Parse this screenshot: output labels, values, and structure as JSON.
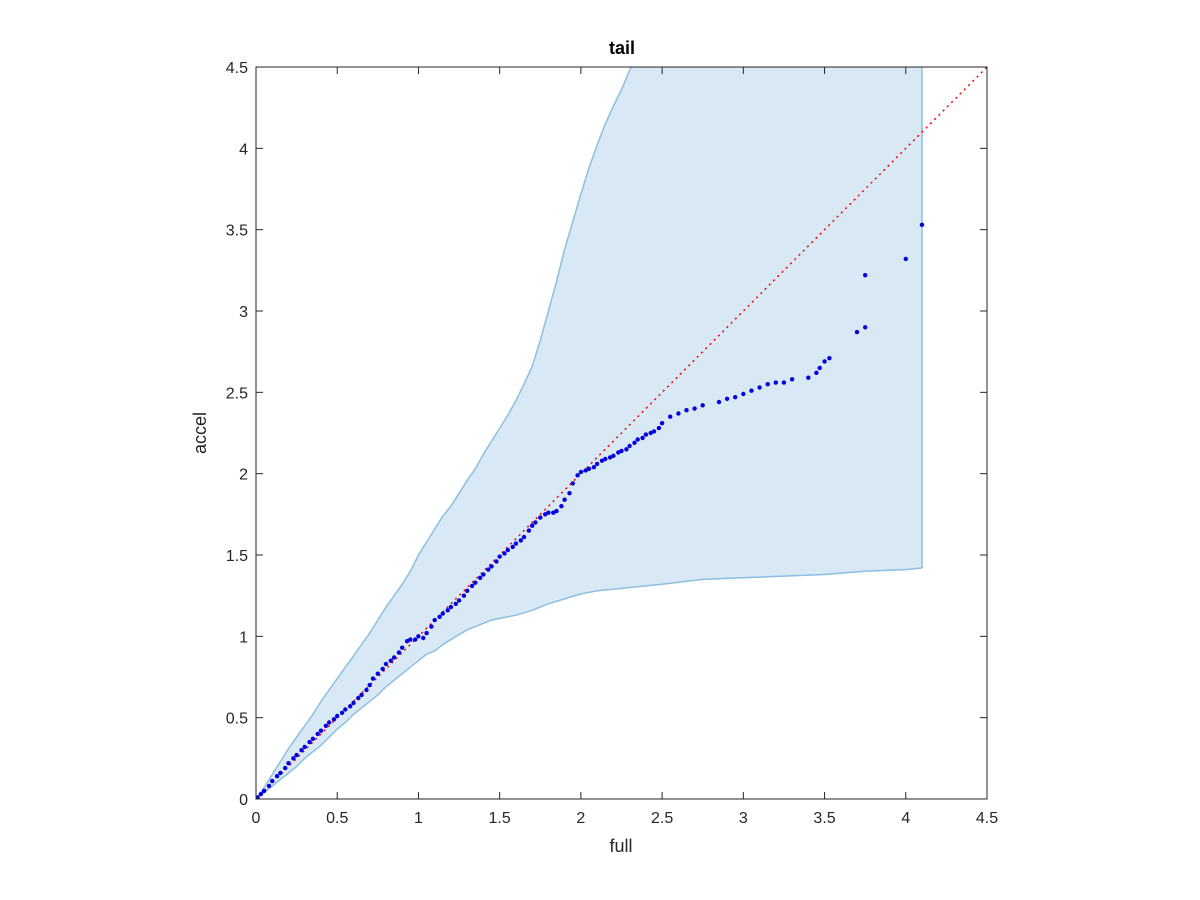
{
  "chart_data": {
    "type": "scatter",
    "title": "tail",
    "xlabel": "full",
    "ylabel": "accel",
    "xlim": [
      0,
      4.5
    ],
    "ylim": [
      0,
      4.5
    ],
    "xticks": [
      "0",
      "0.5",
      "1",
      "1.5",
      "2",
      "2.5",
      "3",
      "3.5",
      "4",
      "4.5"
    ],
    "yticks": [
      "0",
      "0.5",
      "1",
      "1.5",
      "2",
      "2.5",
      "3",
      "3.5",
      "4",
      "4.5"
    ],
    "grid": false,
    "box": true,
    "colors": {
      "band_fill": "#d8e8f4",
      "band_edge": "#8cbfe0",
      "points": "#0000e0",
      "reference": "#ff0000",
      "axes": "#262626"
    },
    "reference_line": {
      "style": "dotted",
      "x": [
        0,
        4.5
      ],
      "y": [
        0,
        4.5
      ]
    },
    "band": {
      "upper": [
        [
          0,
          0
        ],
        [
          0.05,
          0.07
        ],
        [
          0.1,
          0.15
        ],
        [
          0.15,
          0.23
        ],
        [
          0.2,
          0.31
        ],
        [
          0.25,
          0.38
        ],
        [
          0.3,
          0.45
        ],
        [
          0.35,
          0.52
        ],
        [
          0.4,
          0.6
        ],
        [
          0.45,
          0.67
        ],
        [
          0.5,
          0.74
        ],
        [
          0.55,
          0.81
        ],
        [
          0.6,
          0.88
        ],
        [
          0.65,
          0.95
        ],
        [
          0.7,
          1.02
        ],
        [
          0.75,
          1.1
        ],
        [
          0.8,
          1.18
        ],
        [
          0.85,
          1.25
        ],
        [
          0.9,
          1.32
        ],
        [
          0.95,
          1.4
        ],
        [
          1.0,
          1.5
        ],
        [
          1.05,
          1.58
        ],
        [
          1.1,
          1.66
        ],
        [
          1.15,
          1.74
        ],
        [
          1.2,
          1.8
        ],
        [
          1.25,
          1.88
        ],
        [
          1.3,
          1.96
        ],
        [
          1.35,
          2.03
        ],
        [
          1.4,
          2.12
        ],
        [
          1.45,
          2.2
        ],
        [
          1.5,
          2.28
        ],
        [
          1.55,
          2.36
        ],
        [
          1.6,
          2.45
        ],
        [
          1.65,
          2.55
        ],
        [
          1.7,
          2.66
        ],
        [
          1.75,
          2.82
        ],
        [
          1.8,
          3.0
        ],
        [
          1.85,
          3.18
        ],
        [
          1.9,
          3.38
        ],
        [
          1.95,
          3.55
        ],
        [
          2.0,
          3.72
        ],
        [
          2.05,
          3.88
        ],
        [
          2.1,
          4.02
        ],
        [
          2.15,
          4.15
        ],
        [
          2.2,
          4.26
        ],
        [
          2.25,
          4.36
        ],
        [
          2.3,
          4.48
        ],
        [
          2.4,
          4.68
        ],
        [
          2.45,
          4.77
        ],
        [
          2.5,
          4.87
        ],
        [
          2.55,
          4.95
        ],
        [
          2.6,
          5.02
        ],
        [
          2.7,
          5.12
        ],
        [
          2.8,
          5.24
        ],
        [
          2.9,
          5.42
        ],
        [
          2.95,
          5.5
        ],
        [
          3.0,
          5.6
        ],
        [
          3.1,
          5.75
        ],
        [
          3.2,
          5.78
        ],
        [
          3.3,
          5.86
        ],
        [
          3.4,
          5.9
        ],
        [
          3.45,
          5.98
        ],
        [
          3.5,
          6.12
        ],
        [
          3.55,
          6.22
        ],
        [
          3.6,
          6.3
        ],
        [
          3.7,
          6.55
        ],
        [
          3.8,
          6.85
        ],
        [
          3.9,
          7.1
        ],
        [
          4.0,
          7.35
        ],
        [
          4.1,
          7.6
        ]
      ],
      "lower": [
        [
          0,
          0
        ],
        [
          0.05,
          0.04
        ],
        [
          0.1,
          0.08
        ],
        [
          0.15,
          0.12
        ],
        [
          0.2,
          0.16
        ],
        [
          0.25,
          0.2
        ],
        [
          0.3,
          0.25
        ],
        [
          0.35,
          0.29
        ],
        [
          0.4,
          0.33
        ],
        [
          0.45,
          0.38
        ],
        [
          0.5,
          0.43
        ],
        [
          0.55,
          0.47
        ],
        [
          0.6,
          0.52
        ],
        [
          0.65,
          0.56
        ],
        [
          0.7,
          0.6
        ],
        [
          0.75,
          0.64
        ],
        [
          0.8,
          0.69
        ],
        [
          0.85,
          0.73
        ],
        [
          0.9,
          0.77
        ],
        [
          0.95,
          0.81
        ],
        [
          1.0,
          0.85
        ],
        [
          1.05,
          0.89
        ],
        [
          1.1,
          0.91
        ],
        [
          1.15,
          0.95
        ],
        [
          1.2,
          0.98
        ],
        [
          1.25,
          1.01
        ],
        [
          1.3,
          1.04
        ],
        [
          1.35,
          1.06
        ],
        [
          1.4,
          1.08
        ],
        [
          1.45,
          1.1
        ],
        [
          1.5,
          1.11
        ],
        [
          1.6,
          1.13
        ],
        [
          1.7,
          1.16
        ],
        [
          1.8,
          1.2
        ],
        [
          1.9,
          1.23
        ],
        [
          2.0,
          1.26
        ],
        [
          2.1,
          1.28
        ],
        [
          2.2,
          1.29
        ],
        [
          2.3,
          1.3
        ],
        [
          2.5,
          1.32
        ],
        [
          2.75,
          1.35
        ],
        [
          3.0,
          1.36
        ],
        [
          3.25,
          1.37
        ],
        [
          3.5,
          1.38
        ],
        [
          3.75,
          1.4
        ],
        [
          4.0,
          1.41
        ],
        [
          4.1,
          1.42
        ]
      ]
    },
    "points": {
      "x": [
        0.01,
        0.03,
        0.05,
        0.08,
        0.1,
        0.13,
        0.15,
        0.18,
        0.2,
        0.23,
        0.25,
        0.28,
        0.3,
        0.33,
        0.35,
        0.38,
        0.4,
        0.43,
        0.45,
        0.48,
        0.5,
        0.53,
        0.55,
        0.58,
        0.6,
        0.63,
        0.65,
        0.68,
        0.7,
        0.72,
        0.75,
        0.78,
        0.8,
        0.83,
        0.85,
        0.88,
        0.9,
        0.93,
        0.95,
        0.98,
        1.0,
        1.03,
        1.05,
        1.08,
        1.1,
        1.13,
        1.15,
        1.18,
        1.2,
        1.23,
        1.25,
        1.28,
        1.3,
        1.33,
        1.35,
        1.38,
        1.4,
        1.43,
        1.45,
        1.48,
        1.5,
        1.53,
        1.55,
        1.58,
        1.6,
        1.63,
        1.65,
        1.68,
        1.7,
        1.72,
        1.75,
        1.78,
        1.8,
        1.83,
        1.85,
        1.88,
        1.9,
        1.93,
        1.95,
        1.98,
        2.0,
        2.03,
        2.05,
        2.08,
        2.1,
        2.13,
        2.15,
        2.18,
        2.2,
        2.23,
        2.25,
        2.28,
        2.3,
        2.33,
        2.35,
        2.38,
        2.4,
        2.43,
        2.45,
        2.48,
        2.5,
        2.55,
        2.6,
        2.65,
        2.7,
        2.75,
        2.85,
        2.9,
        2.95,
        3.0,
        3.05,
        3.1,
        3.15,
        3.2,
        3.25,
        3.3,
        3.4,
        3.45,
        3.47,
        3.5,
        3.53,
        3.7,
        3.75,
        3.75,
        4.0,
        4.1
      ],
      "y": [
        0.01,
        0.03,
        0.05,
        0.08,
        0.11,
        0.14,
        0.16,
        0.19,
        0.22,
        0.25,
        0.27,
        0.3,
        0.32,
        0.35,
        0.37,
        0.4,
        0.42,
        0.45,
        0.47,
        0.49,
        0.51,
        0.53,
        0.55,
        0.57,
        0.59,
        0.62,
        0.64,
        0.67,
        0.7,
        0.74,
        0.77,
        0.8,
        0.83,
        0.85,
        0.87,
        0.9,
        0.93,
        0.97,
        0.98,
        0.98,
        1.0,
        0.99,
        1.02,
        1.06,
        1.1,
        1.12,
        1.14,
        1.16,
        1.18,
        1.2,
        1.22,
        1.25,
        1.28,
        1.31,
        1.33,
        1.36,
        1.38,
        1.41,
        1.43,
        1.46,
        1.49,
        1.51,
        1.53,
        1.55,
        1.57,
        1.59,
        1.61,
        1.65,
        1.68,
        1.7,
        1.73,
        1.75,
        1.76,
        1.76,
        1.77,
        1.8,
        1.84,
        1.88,
        1.94,
        1.99,
        2.01,
        2.02,
        2.03,
        2.04,
        2.06,
        2.08,
        2.09,
        2.1,
        2.11,
        2.13,
        2.14,
        2.15,
        2.17,
        2.19,
        2.21,
        2.22,
        2.24,
        2.25,
        2.26,
        2.28,
        2.31,
        2.35,
        2.37,
        2.39,
        2.4,
        2.42,
        2.44,
        2.46,
        2.47,
        2.49,
        2.51,
        2.53,
        2.55,
        2.56,
        2.56,
        2.58,
        2.59,
        2.62,
        2.65,
        2.69,
        2.71,
        2.87,
        2.9,
        3.22,
        3.32,
        3.53
      ]
    }
  }
}
